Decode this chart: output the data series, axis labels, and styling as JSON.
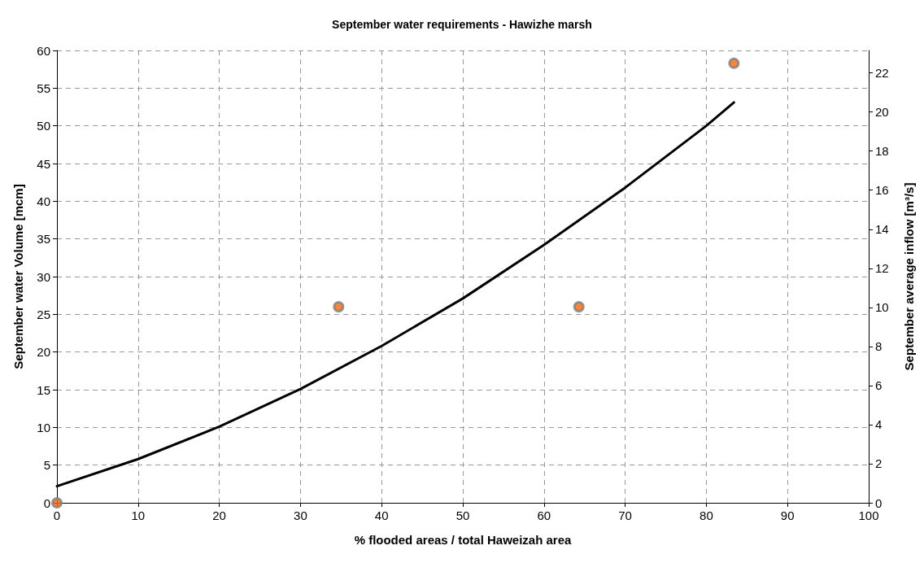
{
  "chart_data": {
    "type": "scatter",
    "title": "September water requirements - Hawizhe marsh",
    "xlabel": "% flooded areas / total Haweizah area",
    "ylabel": "September water Volume [mcm]",
    "y2label": "September average inflow [m³/s]",
    "xlim": [
      0,
      100
    ],
    "xticks": [
      0,
      10,
      20,
      30,
      40,
      50,
      60,
      70,
      80,
      90,
      100
    ],
    "ylim": [
      0,
      60
    ],
    "yticks": [
      0,
      5,
      10,
      15,
      20,
      25,
      30,
      35,
      40,
      45,
      50,
      55,
      60
    ],
    "y2lim": [
      0,
      23.15
    ],
    "y2ticks": [
      0,
      2,
      4,
      6,
      8,
      10,
      12,
      14,
      16,
      18,
      20,
      22
    ],
    "grid": true,
    "marker": "circle",
    "series": [
      {
        "color": "#ff6600",
        "x": [
          0,
          34.7,
          64.3,
          83.4
        ],
        "values": [
          0,
          26,
          26,
          58.3
        ]
      },
      {
        "type": "line",
        "color": "#000000",
        "line_style": "solid",
        "marker": "none",
        "x": [
          0,
          10,
          20,
          30,
          40,
          50,
          60,
          70,
          80,
          83.4
        ],
        "values": [
          2.2,
          5.8,
          10.1,
          15.1,
          20.8,
          27.1,
          34.2,
          41.8,
          50.0,
          53.1
        ]
      }
    ]
  }
}
